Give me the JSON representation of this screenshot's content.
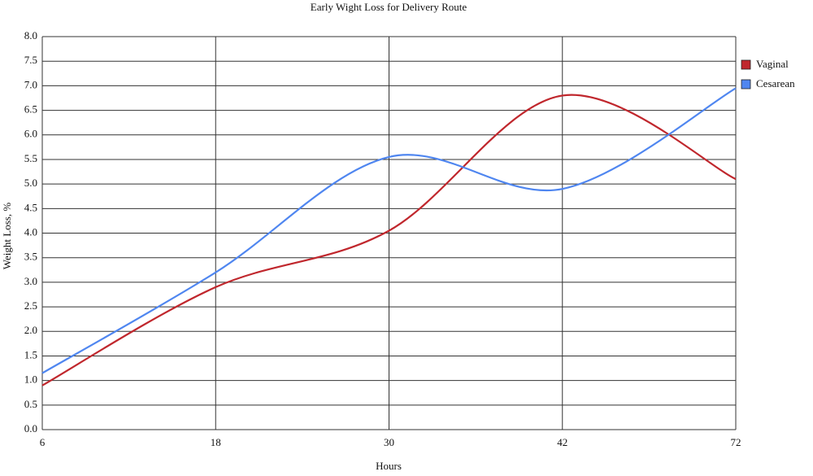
{
  "chart_data": {
    "type": "line",
    "title": "Early Wight Loss for Delivery Route",
    "x_label": "Hours",
    "y_label": "Weight Loss, %",
    "categories": [
      "6",
      "18",
      "30",
      "42",
      "72"
    ],
    "series": [
      {
        "name": "Vaginal",
        "color": "#c0272d",
        "values": [
          0.9,
          2.9,
          4.05,
          6.8,
          5.1
        ]
      },
      {
        "name": "Cesarean",
        "color": "#4f86f0",
        "values": [
          1.15,
          3.2,
          5.55,
          4.9,
          6.95
        ]
      }
    ],
    "ylim": [
      0,
      8
    ],
    "yticks": [
      {
        "value": 0,
        "label": "0.0"
      },
      {
        "value": 0.5,
        "label": "0.5"
      },
      {
        "value": 1,
        "label": "1.0"
      },
      {
        "value": 1.5,
        "label": "1.5"
      },
      {
        "value": 2,
        "label": "2.0"
      },
      {
        "value": 2.5,
        "label": "2.5"
      },
      {
        "value": 3,
        "label": "3.0"
      },
      {
        "value": 3.5,
        "label": "3.5"
      },
      {
        "value": 4,
        "label": "4.0"
      },
      {
        "value": 4.5,
        "label": "4.5"
      },
      {
        "value": 5,
        "label": "5.0"
      },
      {
        "value": 5.5,
        "label": "5.5"
      },
      {
        "value": 6,
        "label": "6.0"
      },
      {
        "value": 6.5,
        "label": "6.5"
      },
      {
        "value": 7,
        "label": "7.0"
      },
      {
        "value": 7.5,
        "label": "7.5"
      },
      {
        "value": 8,
        "label": "8.0"
      }
    ],
    "grid": true,
    "legend": "right"
  }
}
